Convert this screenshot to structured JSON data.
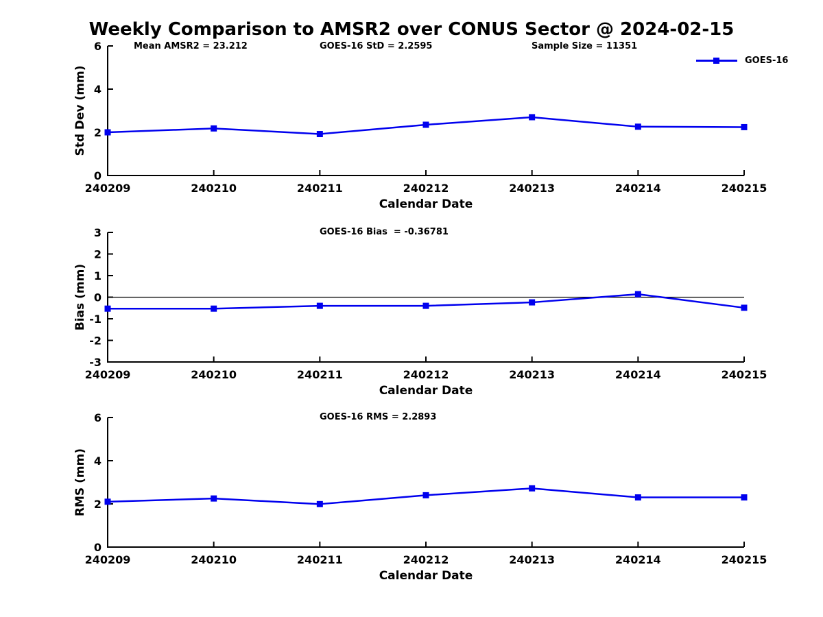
{
  "page": {
    "title": "Weekly Comparison to AMSR2 over CONUS Sector @ 2024-02-15",
    "annotations": [
      {
        "label": "Mean AMSR2 = 23.212"
      },
      {
        "label": "GOES-16 StD = 2.2595"
      },
      {
        "label": "Sample Size = 11351"
      }
    ],
    "legend": {
      "label": "GOES-16",
      "color": "#0000EE"
    }
  },
  "colors": {
    "series": "#0000EE",
    "axis": "#000000"
  },
  "chart_data": [
    {
      "type": "line",
      "title": "",
      "ylabel": "Std Dev (mm)",
      "xlabel": "Calendar Date",
      "categories": [
        "240209",
        "240210",
        "240211",
        "240212",
        "240213",
        "240214",
        "240215"
      ],
      "series": [
        {
          "name": "GOES-16",
          "color": "#0000EE",
          "marker": "square",
          "values": [
            2.0,
            2.18,
            1.92,
            2.35,
            2.7,
            2.26,
            2.24
          ]
        }
      ],
      "ylim": [
        0,
        6
      ],
      "yticks": [
        0,
        2,
        4,
        6
      ],
      "zero_line": false,
      "grid": false,
      "legend_position": "outside-top-right"
    },
    {
      "type": "line",
      "title": "GOES-16 Bias  = -0.36781",
      "ylabel": "Bias (mm)",
      "xlabel": "Calendar Date",
      "categories": [
        "240209",
        "240210",
        "240211",
        "240212",
        "240213",
        "240214",
        "240215"
      ],
      "series": [
        {
          "name": "GOES-16",
          "color": "#0000EE",
          "marker": "square",
          "values": [
            -0.53,
            -0.53,
            -0.4,
            -0.4,
            -0.24,
            0.14,
            -0.49
          ]
        }
      ],
      "ylim": [
        -3,
        3
      ],
      "yticks": [
        -3,
        -2,
        -1,
        0,
        1,
        2,
        3
      ],
      "zero_line": true,
      "grid": false
    },
    {
      "type": "line",
      "title": "GOES-16 RMS = 2.2893",
      "ylabel": "RMS (mm)",
      "xlabel": "Calendar Date",
      "categories": [
        "240209",
        "240210",
        "240211",
        "240212",
        "240213",
        "240214",
        "240215"
      ],
      "series": [
        {
          "name": "GOES-16",
          "color": "#0000EE",
          "marker": "square",
          "values": [
            2.1,
            2.25,
            1.99,
            2.4,
            2.72,
            2.3,
            2.3
          ]
        }
      ],
      "ylim": [
        0,
        6
      ],
      "yticks": [
        0,
        2,
        4,
        6
      ],
      "zero_line": false,
      "grid": false
    }
  ]
}
